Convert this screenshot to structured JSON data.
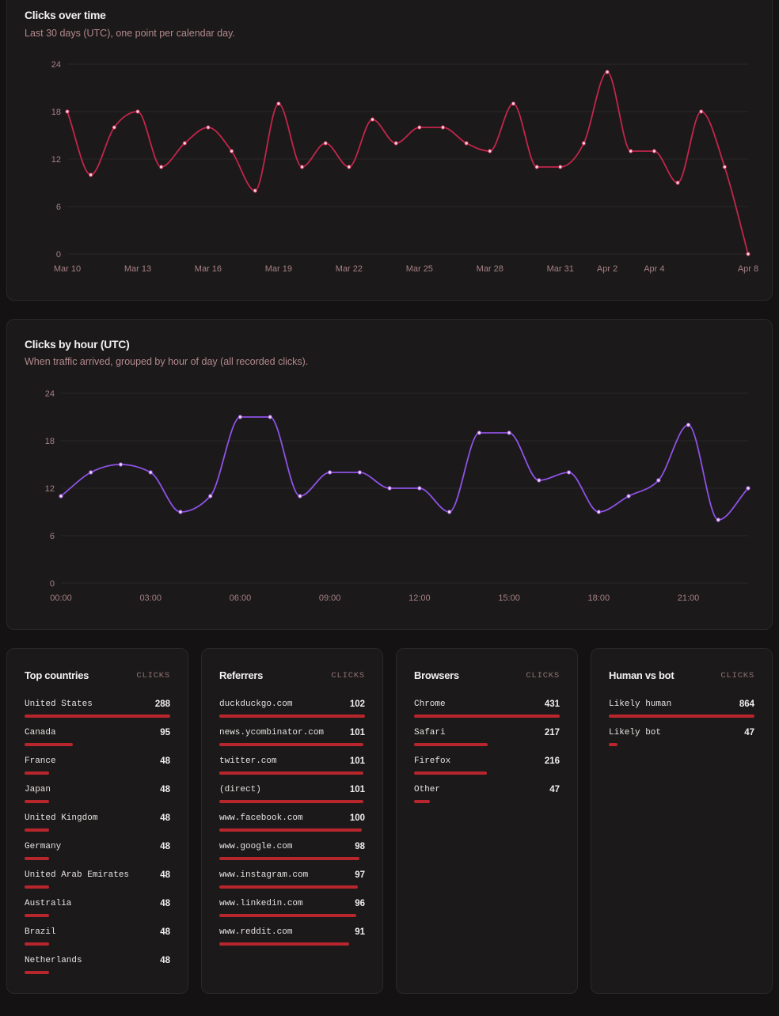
{
  "chart_data": [
    {
      "type": "line",
      "title": "Clicks over time",
      "subtitle": "Last 30 days (UTC), one point per calendar day.",
      "color": "#c2264c",
      "ylim": [
        0,
        24
      ],
      "yticks": [
        0,
        6,
        12,
        18,
        24
      ],
      "grid": true,
      "x": [
        "Mar 10",
        "Mar 11",
        "Mar 12",
        "Mar 13",
        "Mar 14",
        "Mar 15",
        "Mar 16",
        "Mar 17",
        "Mar 18",
        "Mar 19",
        "Mar 20",
        "Mar 21",
        "Mar 22",
        "Mar 23",
        "Mar 24",
        "Mar 25",
        "Mar 26",
        "Mar 27",
        "Mar 28",
        "Mar 29",
        "Mar 30",
        "Mar 31",
        "Apr 1",
        "Apr 2",
        "Apr 3",
        "Apr 4",
        "Apr 5",
        "Apr 6",
        "Apr 7",
        "Apr 8"
      ],
      "xtick_labels": [
        "Mar 10",
        "Mar 13",
        "Mar 16",
        "Mar 19",
        "Mar 22",
        "Mar 25",
        "Mar 28",
        "Mar 31",
        "Apr 2",
        "Apr 4",
        "Apr 8"
      ],
      "values": [
        18,
        10,
        16,
        18,
        11,
        14,
        16,
        13,
        8,
        19,
        11,
        14,
        11,
        17,
        14,
        16,
        16,
        14,
        13,
        19,
        11,
        11,
        14,
        23,
        13,
        13,
        9,
        18,
        11,
        0
      ]
    },
    {
      "type": "line",
      "title": "Clicks by hour (UTC)",
      "subtitle": "When traffic arrived, grouped by hour of day (all recorded clicks).",
      "color": "#8e52e6",
      "ylim": [
        0,
        24
      ],
      "yticks": [
        0,
        6,
        12,
        18,
        24
      ],
      "grid": true,
      "x": [
        "00:00",
        "01:00",
        "02:00",
        "03:00",
        "04:00",
        "05:00",
        "06:00",
        "07:00",
        "08:00",
        "09:00",
        "10:00",
        "11:00",
        "12:00",
        "13:00",
        "14:00",
        "15:00",
        "16:00",
        "17:00",
        "18:00",
        "19:00",
        "20:00",
        "21:00",
        "22:00",
        "23:00"
      ],
      "xtick_labels": [
        "00:00",
        "03:00",
        "06:00",
        "09:00",
        "12:00",
        "15:00",
        "18:00",
        "21:00"
      ],
      "values": [
        11,
        14,
        15,
        14,
        9,
        11,
        21,
        21,
        11,
        14,
        14,
        12,
        12,
        9,
        19,
        19,
        13,
        14,
        9,
        11,
        13,
        20,
        8,
        12
      ]
    }
  ],
  "tables": [
    {
      "title": "Top countries",
      "column": "CLICKS",
      "rows": [
        {
          "label": "United States",
          "value": 288
        },
        {
          "label": "Canada",
          "value": 95
        },
        {
          "label": "France",
          "value": 48
        },
        {
          "label": "Japan",
          "value": 48
        },
        {
          "label": "United Kingdom",
          "value": 48
        },
        {
          "label": "Germany",
          "value": 48
        },
        {
          "label": "United Arab Emirates",
          "value": 48
        },
        {
          "label": "Australia",
          "value": 48
        },
        {
          "label": "Brazil",
          "value": 48
        },
        {
          "label": "Netherlands",
          "value": 48
        }
      ]
    },
    {
      "title": "Referrers",
      "column": "CLICKS",
      "rows": [
        {
          "label": "duckduckgo.com",
          "value": 102
        },
        {
          "label": "news.ycombinator.com",
          "value": 101
        },
        {
          "label": "twitter.com",
          "value": 101
        },
        {
          "label": "(direct)",
          "value": 101
        },
        {
          "label": "www.facebook.com",
          "value": 100
        },
        {
          "label": "www.google.com",
          "value": 98
        },
        {
          "label": "www.instagram.com",
          "value": 97
        },
        {
          "label": "www.linkedin.com",
          "value": 96
        },
        {
          "label": "www.reddit.com",
          "value": 91
        }
      ]
    },
    {
      "title": "Browsers",
      "column": "CLICKS",
      "rows": [
        {
          "label": "Chrome",
          "value": 431
        },
        {
          "label": "Safari",
          "value": 217
        },
        {
          "label": "Firefox",
          "value": 216
        },
        {
          "label": "Other",
          "value": 47
        }
      ]
    },
    {
      "title": "Human vs bot",
      "column": "CLICKS",
      "rows": [
        {
          "label": "Likely human",
          "value": 864
        },
        {
          "label": "Likely bot",
          "value": 47
        }
      ]
    }
  ],
  "bar_color": "#b8262d"
}
